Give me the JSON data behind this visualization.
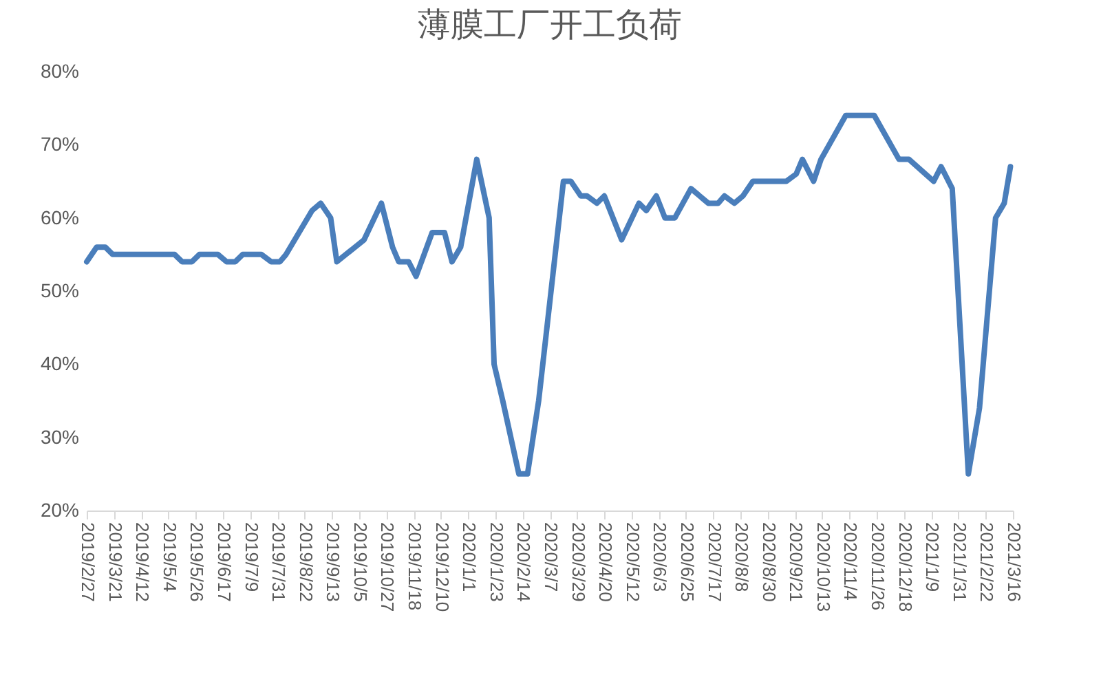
{
  "chart_data": {
    "type": "line",
    "title": "薄膜工厂开工负荷",
    "x": [
      "2019-02-27",
      "2019-03-07",
      "2019-03-14",
      "2019-03-20",
      "2019-05-09",
      "2019-05-15",
      "2019-05-23",
      "2019-05-29",
      "2019-06-13",
      "2019-06-20",
      "2019-06-27",
      "2019-07-03",
      "2019-07-18",
      "2019-07-26",
      "2019-08-02",
      "2019-08-07",
      "2019-08-28",
      "2019-09-04",
      "2019-09-12",
      "2019-09-17",
      "2019-10-09",
      "2019-10-23",
      "2019-11-01",
      "2019-11-06",
      "2019-11-14",
      "2019-11-20",
      "2019-12-03",
      "2019-12-13",
      "2019-12-19",
      "2019-12-26",
      "2020-01-08",
      "2020-01-18",
      "2020-01-22",
      "2020-01-29",
      "2020-02-11",
      "2020-02-18",
      "2020-02-27",
      "2020-03-18",
      "2020-03-24",
      "2020-04-01",
      "2020-04-06",
      "2020-04-14",
      "2020-04-20",
      "2020-05-04",
      "2020-05-18",
      "2020-05-24",
      "2020-06-01",
      "2020-06-08",
      "2020-06-16",
      "2020-06-29",
      "2020-07-13",
      "2020-07-21",
      "2020-07-26",
      "2020-08-03",
      "2020-08-10",
      "2020-08-18",
      "2020-09-14",
      "2020-09-22",
      "2020-09-27",
      "2020-10-06",
      "2020-10-12",
      "2020-11-01",
      "2020-11-24",
      "2020-12-14",
      "2020-12-22",
      "2021-01-11",
      "2021-01-17",
      "2021-01-26",
      "2021-02-08",
      "2021-02-17",
      "2021-03-02",
      "2021-03-09",
      "2021-03-14"
    ],
    "series": [
      {
        "color": "#4a7ebb",
        "values": [
          54,
          56,
          56,
          55,
          55,
          54,
          54,
          55,
          55,
          54,
          54,
          55,
          55,
          54,
          54,
          55,
          61,
          62,
          60,
          54,
          57,
          62,
          56,
          54,
          54,
          52,
          58,
          58,
          54,
          56,
          68,
          60,
          40,
          35,
          25,
          25,
          35,
          65,
          65,
          63,
          63,
          62,
          63,
          57,
          62,
          61,
          63,
          60,
          60,
          64,
          62,
          62,
          63,
          62,
          63,
          65,
          65,
          66,
          68,
          65,
          68,
          74,
          74,
          68,
          68,
          65,
          67,
          64,
          25,
          34,
          60,
          62,
          67
        ]
      }
    ],
    "xlim": [
      "2019-02-27",
      "2021-03-16"
    ],
    "xticks": [
      {
        "value": "2019-02-27",
        "label": "2019/2/27"
      },
      {
        "value": "2019-03-21",
        "label": "2019/3/21"
      },
      {
        "value": "2019-04-12",
        "label": "2019/4/12"
      },
      {
        "value": "2019-05-04",
        "label": "2019/5/4"
      },
      {
        "value": "2019-05-26",
        "label": "2019/5/26"
      },
      {
        "value": "2019-06-17",
        "label": "2019/6/17"
      },
      {
        "value": "2019-07-09",
        "label": "2019/7/9"
      },
      {
        "value": "2019-07-31",
        "label": "2019/7/31"
      },
      {
        "value": "2019-08-22",
        "label": "2019/8/22"
      },
      {
        "value": "2019-09-13",
        "label": "2019/9/13"
      },
      {
        "value": "2019-10-05",
        "label": "2019/10/5"
      },
      {
        "value": "2019-10-27",
        "label": "2019/10/27"
      },
      {
        "value": "2019-11-18",
        "label": "2019/11/18"
      },
      {
        "value": "2019-12-10",
        "label": "2019/12/10"
      },
      {
        "value": "2020-01-01",
        "label": "2020/1/1"
      },
      {
        "value": "2020-01-23",
        "label": "2020/1/23"
      },
      {
        "value": "2020-02-14",
        "label": "2020/2/14"
      },
      {
        "value": "2020-03-07",
        "label": "2020/3/7"
      },
      {
        "value": "2020-03-29",
        "label": "2020/3/29"
      },
      {
        "value": "2020-04-20",
        "label": "2020/4/20"
      },
      {
        "value": "2020-05-12",
        "label": "2020/5/12"
      },
      {
        "value": "2020-06-03",
        "label": "2020/6/3"
      },
      {
        "value": "2020-06-25",
        "label": "2020/6/25"
      },
      {
        "value": "2020-07-17",
        "label": "2020/7/17"
      },
      {
        "value": "2020-08-08",
        "label": "2020/8/8"
      },
      {
        "value": "2020-08-30",
        "label": "2020/8/30"
      },
      {
        "value": "2020-09-21",
        "label": "2020/9/21"
      },
      {
        "value": "2020-10-13",
        "label": "2020/10/13"
      },
      {
        "value": "2020-11-04",
        "label": "2020/11/4"
      },
      {
        "value": "2020-11-26",
        "label": "2020/11/26"
      },
      {
        "value": "2020-12-18",
        "label": "2020/12/18"
      },
      {
        "value": "2021-01-09",
        "label": "2021/1/9"
      },
      {
        "value": "2021-01-31",
        "label": "2021/1/31"
      },
      {
        "value": "2021-02-22",
        "label": "2021/2/22"
      },
      {
        "value": "2021-03-16",
        "label": "2021/3/16"
      }
    ],
    "ylim": [
      20,
      80
    ],
    "yticks": [
      {
        "value": 20,
        "label": "20%"
      },
      {
        "value": 30,
        "label": "30%"
      },
      {
        "value": 40,
        "label": "40%"
      },
      {
        "value": 50,
        "label": "50%"
      },
      {
        "value": 60,
        "label": "60%"
      },
      {
        "value": 70,
        "label": "70%"
      },
      {
        "value": 80,
        "label": "80%"
      }
    ],
    "grid": false,
    "marker": "none",
    "line_style": "solid"
  }
}
